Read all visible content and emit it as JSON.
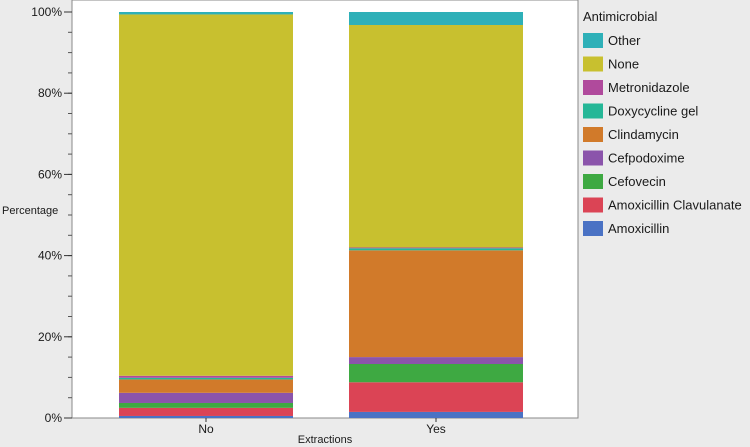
{
  "chart_data": {
    "type": "bar",
    "stacked": true,
    "title": "",
    "xlabel": "Extractions",
    "ylabel": "Percentage",
    "ylim": [
      0,
      100
    ],
    "y_ticks": [
      "0%",
      "20%",
      "40%",
      "60%",
      "80%",
      "100%"
    ],
    "y_tick_values": [
      0,
      20,
      40,
      60,
      80,
      100
    ],
    "categories": [
      "No",
      "Yes"
    ],
    "legend_title": "Antimicrobial",
    "legend_position": "right",
    "series": [
      {
        "name": "Amoxicillin",
        "color": "#4a72c4",
        "values": [
          0.5,
          1.5
        ]
      },
      {
        "name": "Amoxicillin Clavulanate",
        "color": "#db4455",
        "values": [
          2.0,
          7.3
        ]
      },
      {
        "name": "Cefovecin",
        "color": "#3ea942",
        "values": [
          1.2,
          4.5
        ]
      },
      {
        "name": "Cefpodoxime",
        "color": "#8b54ab",
        "values": [
          2.5,
          1.7
        ]
      },
      {
        "name": "Clindamycin",
        "color": "#d17a2a",
        "values": [
          3.3,
          26.3
        ]
      },
      {
        "name": "Doxycycline gel",
        "color": "#25b797",
        "values": [
          0.4,
          0.5
        ]
      },
      {
        "name": "Metronidazole",
        "color": "#b04a9c",
        "values": [
          0.5,
          0.2
        ]
      },
      {
        "name": "None",
        "color": "#c8c02f",
        "values": [
          89.0,
          54.8
        ]
      },
      {
        "name": "Other",
        "color": "#2eb0b8",
        "values": [
          0.6,
          3.2
        ]
      }
    ],
    "legend_order": [
      "Other",
      "None",
      "Metronidazole",
      "Doxycycline gel",
      "Clindamycin",
      "Cefpodoxime",
      "Cefovecin",
      "Amoxicillin Clavulanate",
      "Amoxicillin"
    ]
  }
}
